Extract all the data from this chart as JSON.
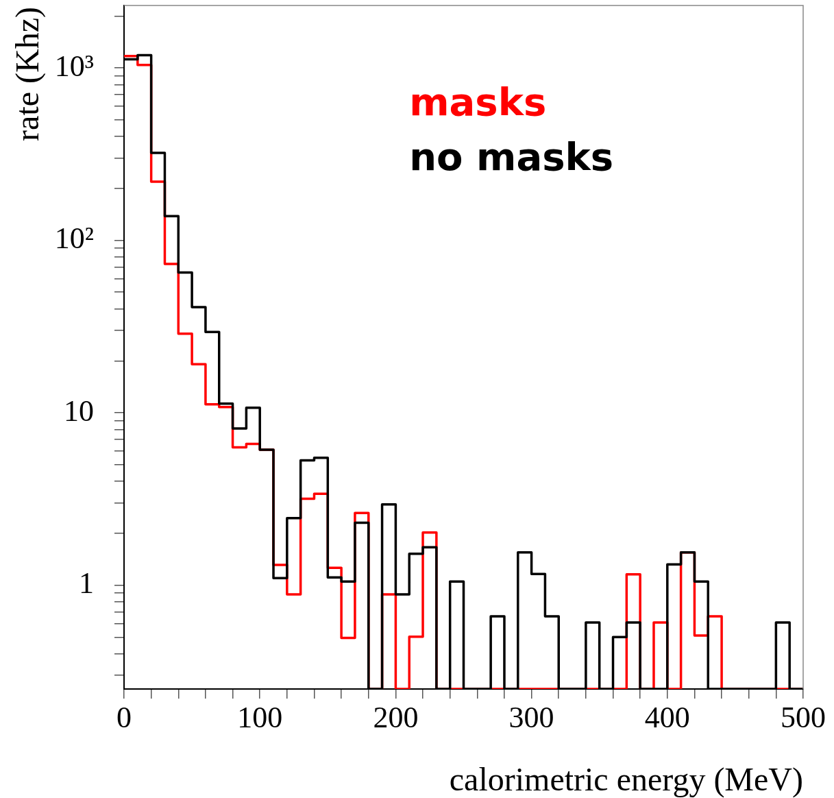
{
  "chart_data": {
    "type": "histogram",
    "xlabel": "calorimetric energy (MeV)",
    "ylabel": "rate (Khz)",
    "bins": [
      0,
      10,
      20,
      30,
      40,
      50,
      60,
      70,
      80,
      90,
      100,
      110,
      120,
      130,
      140,
      150,
      160,
      170,
      180,
      190,
      200,
      210,
      220,
      230,
      240,
      250,
      260,
      270,
      280,
      290,
      300,
      310,
      320,
      330,
      340,
      350,
      360,
      370,
      380,
      390,
      400,
      410,
      420,
      430,
      440,
      450,
      460,
      470,
      480,
      490,
      500
    ],
    "series": [
      {
        "name": "masks",
        "color": "#ff0000",
        "values": [
          1170,
          1040,
          219,
          73,
          28.7,
          19.1,
          11.2,
          10.8,
          6.3,
          6.6,
          6.1,
          1.31,
          0.885,
          3.17,
          3.39,
          1.26,
          0.495,
          2.62,
          null,
          0.885,
          null,
          0.503,
          2.02,
          null,
          null,
          null,
          null,
          null,
          null,
          null,
          null,
          null,
          null,
          null,
          null,
          null,
          null,
          1.155,
          null,
          0.608,
          null,
          1.55,
          0.51,
          0.66,
          null,
          null,
          null,
          null,
          null,
          null
        ]
      },
      {
        "name": "no masks",
        "color": "#000000",
        "values": [
          1120,
          1185,
          321,
          138,
          65,
          41,
          29.4,
          11.3,
          8.1,
          10.7,
          6.1,
          1.1,
          2.45,
          5.3,
          5.48,
          1.11,
          1.05,
          2.3,
          null,
          2.94,
          0.885,
          1.52,
          1.66,
          null,
          1.05,
          null,
          null,
          0.66,
          null,
          1.55,
          1.16,
          0.66,
          null,
          null,
          0.608,
          null,
          0.5,
          0.608,
          null,
          null,
          1.32,
          1.55,
          1.05,
          null,
          null,
          null,
          null,
          null,
          0.608,
          null
        ]
      }
    ],
    "log": "y",
    "ylim": [
      0.25,
      2300
    ],
    "yticks": [
      {
        "value": 0.3,
        "label": null
      },
      {
        "value": 0.4,
        "label": null
      },
      {
        "value": 0.5,
        "label": null
      },
      {
        "value": 0.6,
        "label": null
      },
      {
        "value": 0.7,
        "label": null
      },
      {
        "value": 0.8,
        "label": null
      },
      {
        "value": 0.9,
        "label": null
      },
      1,
      {
        "value": 2,
        "label": null
      },
      {
        "value": 3,
        "label": null
      },
      {
        "value": 4,
        "label": null
      },
      {
        "value": 5,
        "label": null
      },
      {
        "value": 6,
        "label": null
      },
      {
        "value": 7,
        "label": null
      },
      {
        "value": 8,
        "label": null
      },
      {
        "value": 9,
        "label": null
      },
      10,
      {
        "value": 20,
        "label": null
      },
      {
        "value": 30,
        "label": null
      },
      {
        "value": 40,
        "label": null
      },
      {
        "value": 50,
        "label": null
      },
      {
        "value": 60,
        "label": null
      },
      {
        "value": 70,
        "label": null
      },
      {
        "value": 80,
        "label": null
      },
      {
        "value": 90,
        "label": null
      },
      {
        "value": 100,
        "label": "10²"
      },
      {
        "value": 200,
        "label": null
      },
      {
        "value": 300,
        "label": null
      },
      {
        "value": 400,
        "label": null
      },
      {
        "value": 500,
        "label": null
      },
      {
        "value": 600,
        "label": null
      },
      {
        "value": 700,
        "label": null
      },
      {
        "value": 800,
        "label": null
      },
      {
        "value": 900,
        "label": null
      },
      {
        "value": 1000,
        "label": "10³"
      },
      {
        "value": 2000,
        "label": null
      }
    ],
    "xlim": [
      0,
      500
    ],
    "xticks": [
      0,
      {
        "value": 20,
        "label": null
      },
      {
        "value": 40,
        "label": null
      },
      {
        "value": 60,
        "label": null
      },
      {
        "value": 80,
        "label": null
      },
      100,
      {
        "value": 120,
        "label": null
      },
      {
        "value": 140,
        "label": null
      },
      {
        "value": 160,
        "label": null
      },
      {
        "value": 180,
        "label": null
      },
      200,
      {
        "value": 220,
        "label": null
      },
      {
        "value": 240,
        "label": null
      },
      {
        "value": 260,
        "label": null
      },
      {
        "value": 280,
        "label": null
      },
      300,
      {
        "value": 320,
        "label": null
      },
      {
        "value": 340,
        "label": null
      },
      {
        "value": 360,
        "label": null
      },
      {
        "value": 380,
        "label": null
      },
      400,
      {
        "value": 420,
        "label": null
      },
      {
        "value": 440,
        "label": null
      },
      {
        "value": 460,
        "label": null
      },
      {
        "value": 480,
        "label": null
      },
      500
    ],
    "grid": false
  }
}
